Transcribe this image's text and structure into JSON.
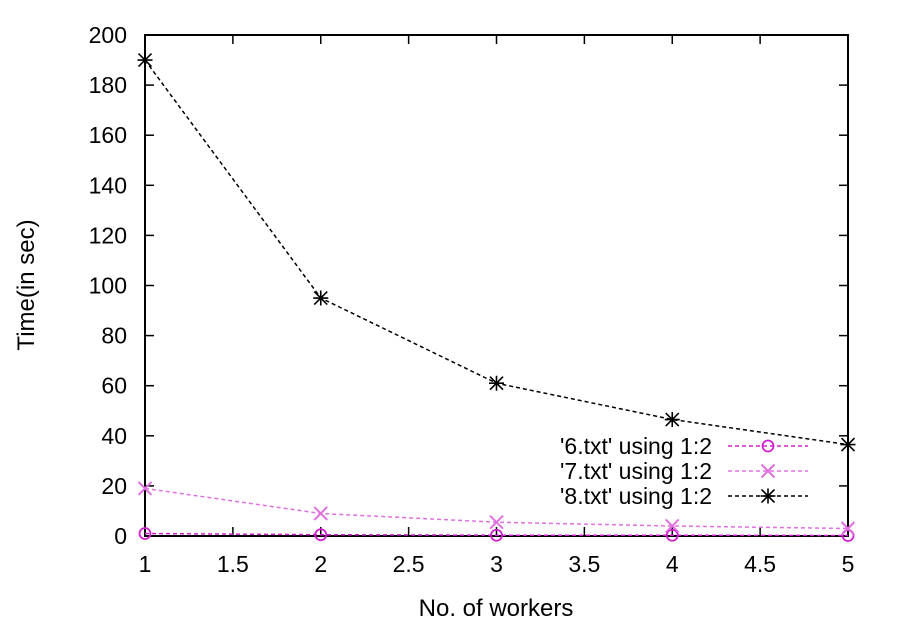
{
  "chart_data": {
    "type": "line",
    "xlabel": "No. of workers",
    "ylabel": "Time(in sec)",
    "xlim": [
      1,
      5
    ],
    "ylim": [
      0,
      200
    ],
    "x_ticks": [
      "1",
      "1.5",
      "2",
      "2.5",
      "3",
      "3.5",
      "4",
      "4.5",
      "5"
    ],
    "y_ticks": [
      "0",
      "20",
      "40",
      "60",
      "80",
      "100",
      "120",
      "140",
      "160",
      "180",
      "200"
    ],
    "grid": false,
    "legend_position": "bottom-right",
    "x": [
      1,
      2,
      3,
      4,
      5
    ],
    "series": [
      {
        "name": "'6.txt' using 1:2",
        "marker": "circle",
        "color": "#d020d0",
        "values": [
          1,
          0.5,
          0.3,
          0.3,
          0.2
        ]
      },
      {
        "name": "'7.txt' using 1:2",
        "marker": "x",
        "color": "#e070e0",
        "values": [
          19,
          9,
          5.5,
          4,
          3
        ]
      },
      {
        "name": "'8.txt' using 1:2",
        "marker": "star",
        "color": "#000000",
        "values": [
          190,
          95,
          61,
          46.5,
          36.5
        ]
      }
    ]
  }
}
